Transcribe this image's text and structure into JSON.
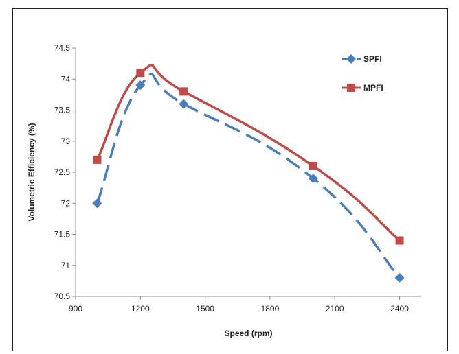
{
  "chart_data": {
    "type": "line",
    "title": "",
    "xlabel": "Speed (rpm)",
    "ylabel": "Volumetric Efficiency (%)",
    "xlim": [
      900,
      2500
    ],
    "ylim": [
      70.5,
      74.5
    ],
    "xticks": [
      900,
      1200,
      1500,
      1800,
      2100,
      2400
    ],
    "xtick_labels": [
      "900",
      "1200",
      "1500",
      "1800",
      "2100",
      "2400"
    ],
    "yticks": [
      70.5,
      71,
      71.5,
      72,
      72.5,
      73,
      73.5,
      74,
      74.5
    ],
    "ytick_labels": [
      "70.5",
      "71",
      "71.5",
      "72",
      "72.5",
      "73",
      "73.5",
      "74",
      "74.5"
    ],
    "grid": false,
    "legend_position": "top-right",
    "x": [
      1000,
      1200,
      1400,
      2000,
      2400
    ],
    "series": [
      {
        "name": "SPFI",
        "values": [
          72.0,
          73.9,
          73.6,
          72.4,
          70.8
        ],
        "color": "#4a7ebb",
        "line_style": "dashed",
        "marker": "diamond"
      },
      {
        "name": "MPFI",
        "values": [
          72.7,
          74.1,
          73.8,
          72.6,
          71.4
        ],
        "color": "#be4b48",
        "line_style": "solid",
        "marker": "square"
      }
    ]
  }
}
